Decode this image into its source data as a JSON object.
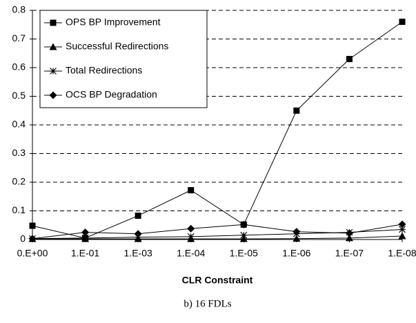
{
  "chart_data": {
    "type": "line",
    "x_label": "CLR Constraint",
    "caption": "b) 16 FDLs",
    "categories": [
      "0.E+00",
      "1.E-01",
      "1.E-03",
      "1.E-04",
      "1.E-05",
      "1.E-06",
      "1.E-07",
      "1.E-08"
    ],
    "series": [
      {
        "name": "OPS BP Improvement",
        "color": "#000000",
        "marker": "square",
        "values": [
          0.048,
          0.005,
          0.083,
          0.172,
          0.052,
          0.45,
          0.63,
          0.76
        ]
      },
      {
        "name": "Successful Redirections",
        "color": "#000000",
        "marker": "triangle",
        "values": [
          0.002,
          0.002,
          0.002,
          0.002,
          0.002,
          0.003,
          0.005,
          0.012
        ]
      },
      {
        "name": "Total Redirections",
        "color": "#000000",
        "marker": "star",
        "values": [
          0.003,
          0.005,
          0.008,
          0.01,
          0.015,
          0.02,
          0.025,
          0.035
        ]
      },
      {
        "name": "OCS BP Degradation",
        "color": "#000000",
        "marker": "diamond",
        "values": [
          0.003,
          0.025,
          0.02,
          0.038,
          0.052,
          0.027,
          0.022,
          0.053
        ]
      }
    ],
    "ylim": [
      0,
      0.8
    ],
    "yticks": [
      0,
      0.1,
      0.2,
      0.3,
      0.4,
      0.5,
      0.6,
      0.7,
      0.8
    ],
    "grid": true,
    "legend": "top-left"
  }
}
